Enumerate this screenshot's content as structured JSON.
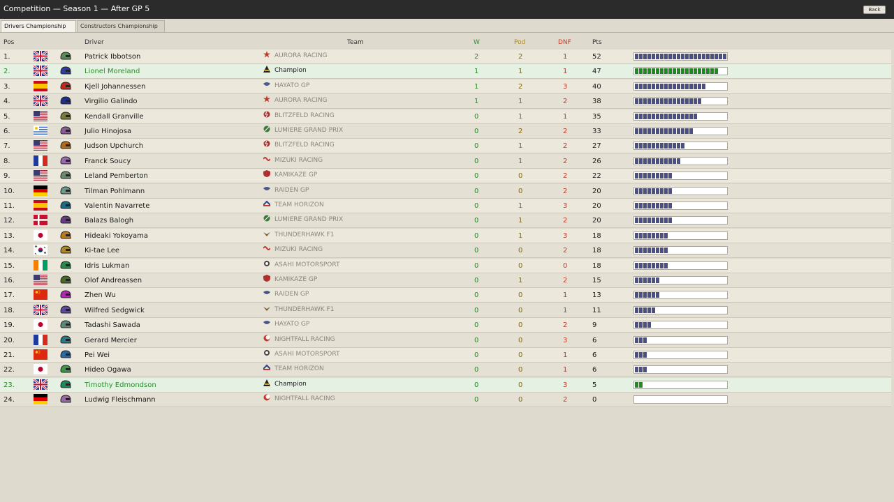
{
  "window": {
    "title": "Competition — Season 1 — After GP 5",
    "back_label": "Back"
  },
  "tabs": [
    {
      "label": "Drivers Championship",
      "active": true
    },
    {
      "label": "Constructors Championship",
      "active": false
    }
  ],
  "columns": {
    "pos": "Pos",
    "driver": "Driver",
    "team": "Team",
    "w": "W",
    "pod": "Pod",
    "dnf": "DNF",
    "pts": "Pts"
  },
  "colors": {
    "accent_green": "#2e8a2e",
    "bar": "#4b4f82",
    "highlight_bar": "#1f8a1f"
  },
  "max_points": 52,
  "rows": [
    {
      "pos": "1.",
      "flag": "GB",
      "helmet": "#5a8a5a",
      "driver": "Patrick Ibbotson",
      "team": "AURORA RACING",
      "team_icon": "star-icon",
      "w": "2",
      "pod": "2",
      "dnf": "1",
      "pts": "52",
      "highlight": false
    },
    {
      "pos": "2.",
      "flag": "GB",
      "helmet": "#2a3fa0",
      "driver": "Lionel Moreland",
      "team": "Champion",
      "team_icon": "champion-icon",
      "w": "1",
      "pod": "1",
      "dnf": "1",
      "pts": "47",
      "highlight": true
    },
    {
      "pos": "3.",
      "flag": "ES",
      "helmet": "#c2281e",
      "driver": "Kjell Johannessen",
      "team": "HAYATO GP",
      "team_icon": "wing-icon",
      "w": "1",
      "pod": "2",
      "dnf": "3",
      "pts": "40",
      "highlight": false
    },
    {
      "pos": "4.",
      "flag": "GB",
      "helmet": "#1f2f8a",
      "driver": "Virgilio Galindo",
      "team": "AURORA RACING",
      "team_icon": "star-icon",
      "w": "1",
      "pod": "1",
      "dnf": "2",
      "pts": "38",
      "highlight": false
    },
    {
      "pos": "5.",
      "flag": "US",
      "helmet": "#7a7a3a",
      "driver": "Kendall Granville",
      "team": "BLITZFELD RACING",
      "team_icon": "bolt-icon",
      "w": "0",
      "pod": "1",
      "dnf": "1",
      "pts": "35",
      "highlight": false
    },
    {
      "pos": "6.",
      "flag": "UY",
      "helmet": "#8a5a9a",
      "driver": "Julio Hinojosa",
      "team": "LUMIERE GRAND PRIX",
      "team_icon": "leaf-icon",
      "w": "0",
      "pod": "2",
      "dnf": "2",
      "pts": "33",
      "highlight": false
    },
    {
      "pos": "7.",
      "flag": "US",
      "helmet": "#b06a1a",
      "driver": "Judson Upchurch",
      "team": "BLITZFELD RACING",
      "team_icon": "bolt-icon",
      "w": "0",
      "pod": "1",
      "dnf": "2",
      "pts": "27",
      "highlight": false
    },
    {
      "pos": "8.",
      "flag": "FR",
      "helmet": "#9a6ab0",
      "driver": "Franck Soucy",
      "team": "MIZUKI RACING",
      "team_icon": "wave-icon",
      "w": "0",
      "pod": "1",
      "dnf": "2",
      "pts": "26",
      "highlight": false
    },
    {
      "pos": "9.",
      "flag": "US",
      "helmet": "#6a8a6a",
      "driver": "Leland Pemberton",
      "team": "KAMIKAZE GP",
      "team_icon": "shield-icon",
      "w": "0",
      "pod": "0",
      "dnf": "2",
      "pts": "22",
      "highlight": false
    },
    {
      "pos": "10.",
      "flag": "DE",
      "helmet": "#6a9a8a",
      "driver": "Tilman Pohlmann",
      "team": "RAIDEN GP",
      "team_icon": "wing-icon",
      "w": "0",
      "pod": "0",
      "dnf": "2",
      "pts": "20",
      "highlight": false
    },
    {
      "pos": "11.",
      "flag": "ES",
      "helmet": "#1a6a8a",
      "driver": "Valentin Navarrete",
      "team": "TEAM HORIZON",
      "team_icon": "horizon-icon",
      "w": "0",
      "pod": "1",
      "dnf": "3",
      "pts": "20",
      "highlight": false
    },
    {
      "pos": "12.",
      "flag": "DK",
      "helmet": "#6a3a8a",
      "driver": "Balazs Balogh",
      "team": "LUMIERE GRAND PRIX",
      "team_icon": "leaf-icon",
      "w": "0",
      "pod": "1",
      "dnf": "2",
      "pts": "20",
      "highlight": false
    },
    {
      "pos": "13.",
      "flag": "JP",
      "helmet": "#c07a1a",
      "driver": "Hideaki Yokoyama",
      "team": "THUNDERHAWK F1",
      "team_icon": "hawk-icon",
      "w": "0",
      "pod": "1",
      "dnf": "3",
      "pts": "18",
      "highlight": false
    },
    {
      "pos": "14.",
      "flag": "KR",
      "helmet": "#b08a2a",
      "driver": "Ki-tae Lee",
      "team": "MIZUKI RACING",
      "team_icon": "wave-icon",
      "w": "0",
      "pod": "0",
      "dnf": "2",
      "pts": "18",
      "highlight": false
    },
    {
      "pos": "15.",
      "flag": "CI",
      "helmet": "#2a8a4a",
      "driver": "Idris Lukman",
      "team": "ASAHI MOTORSPORT",
      "team_icon": "sun-icon",
      "w": "0",
      "pod": "0",
      "dnf": "0",
      "pts": "18",
      "highlight": false
    },
    {
      "pos": "16.",
      "flag": "US",
      "helmet": "#4a6a2a",
      "driver": "Olof Andreassen",
      "team": "KAMIKAZE GP",
      "team_icon": "shield-icon",
      "w": "0",
      "pod": "1",
      "dnf": "2",
      "pts": "15",
      "highlight": false
    },
    {
      "pos": "17.",
      "flag": "CN",
      "helmet": "#b02ab0",
      "driver": "Zhen Wu",
      "team": "RAIDEN GP",
      "team_icon": "wing-icon",
      "w": "0",
      "pod": "0",
      "dnf": "1",
      "pts": "13",
      "highlight": false
    },
    {
      "pos": "18.",
      "flag": "GB",
      "helmet": "#5a4aa0",
      "driver": "Wilfred Sedgwick",
      "team": "THUNDERHAWK F1",
      "team_icon": "hawk-icon",
      "w": "0",
      "pod": "0",
      "dnf": "1",
      "pts": "11",
      "highlight": false
    },
    {
      "pos": "19.",
      "flag": "JP",
      "helmet": "#5a8a7a",
      "driver": "Tadashi Sawada",
      "team": "HAYATO GP",
      "team_icon": "wing-icon",
      "w": "0",
      "pod": "0",
      "dnf": "2",
      "pts": "9",
      "highlight": false
    },
    {
      "pos": "20.",
      "flag": "FR",
      "helmet": "#2a7a8a",
      "driver": "Gerard Mercier",
      "team": "NIGHTFALL RACING",
      "team_icon": "moon-icon",
      "w": "0",
      "pod": "0",
      "dnf": "3",
      "pts": "6",
      "highlight": false
    },
    {
      "pos": "21.",
      "flag": "CN",
      "helmet": "#2a6aa0",
      "driver": "Pei Wei",
      "team": "ASAHI MOTORSPORT",
      "team_icon": "sun-icon",
      "w": "0",
      "pod": "0",
      "dnf": "1",
      "pts": "6",
      "highlight": false
    },
    {
      "pos": "22.",
      "flag": "JP",
      "helmet": "#3a9a4a",
      "driver": "Hideo Ogawa",
      "team": "TEAM HORIZON",
      "team_icon": "horizon-icon",
      "w": "0",
      "pod": "0",
      "dnf": "1",
      "pts": "6",
      "highlight": false
    },
    {
      "pos": "23.",
      "flag": "GB",
      "helmet": "#1a8a5a",
      "driver": "Timothy Edmondson",
      "team": "Champion",
      "team_icon": "champion-icon",
      "w": "0",
      "pod": "0",
      "dnf": "3",
      "pts": "5",
      "highlight": true
    },
    {
      "pos": "24.",
      "flag": "DE",
      "helmet": "#9a6aa0",
      "driver": "Ludwig Fleischmann",
      "team": "NIGHTFALL RACING",
      "team_icon": "moon-icon",
      "w": "0",
      "pod": "0",
      "dnf": "2",
      "pts": "0",
      "highlight": false
    }
  ]
}
